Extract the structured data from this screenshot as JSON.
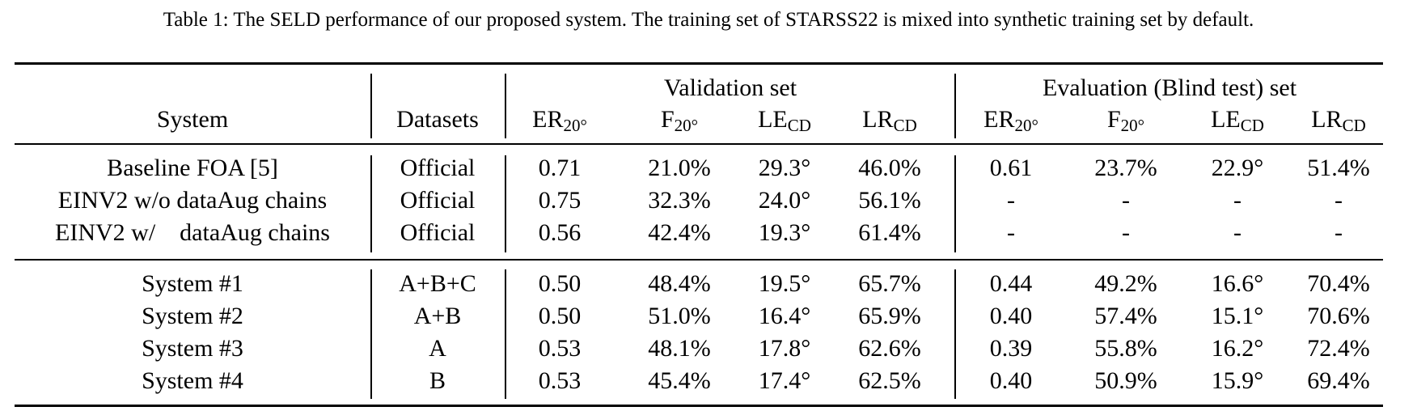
{
  "caption": "Table 1: The SELD performance of our proposed system. The training set of STARSS22 is mixed into synthetic training set by default.",
  "header": {
    "system": "System",
    "datasets": "Datasets",
    "validation_group": "Validation set",
    "evaluation_group": "Evaluation (Blind test) set",
    "metrics": [
      {
        "base": "ER",
        "sub": "20°"
      },
      {
        "base": "F",
        "sub": "20°"
      },
      {
        "base": "LE",
        "sub": "CD"
      },
      {
        "base": "LR",
        "sub": "CD"
      },
      {
        "base": "ER",
        "sub": "20°"
      },
      {
        "base": "F",
        "sub": "20°"
      },
      {
        "base": "LE",
        "sub": "CD"
      },
      {
        "base": "LR",
        "sub": "CD"
      }
    ]
  },
  "rows": [
    {
      "system": "Baseline FOA [5]",
      "datasets": "Official",
      "values": [
        "0.71",
        "21.0%",
        "29.3°",
        "46.0%",
        "0.61",
        "23.7%",
        "22.9°",
        "51.4%"
      ]
    },
    {
      "system": "EINV2 w/o dataAug chains",
      "datasets": "Official",
      "values": [
        "0.75",
        "32.3%",
        "24.0°",
        "56.1%",
        "-",
        "-",
        "-",
        "-"
      ]
    },
    {
      "system": "EINV2 w/    dataAug chains",
      "datasets": "Official",
      "values": [
        "0.56",
        "42.4%",
        "19.3°",
        "61.4%",
        "-",
        "-",
        "-",
        "-"
      ]
    },
    {
      "system": "System #1",
      "datasets": "A+B+C",
      "values": [
        "0.50",
        "48.4%",
        "19.5°",
        "65.7%",
        "0.44",
        "49.2%",
        "16.6°",
        "70.4%"
      ]
    },
    {
      "system": "System #2",
      "datasets": "A+B",
      "values": [
        "0.50",
        "51.0%",
        "16.4°",
        "65.9%",
        "0.40",
        "57.4%",
        "15.1°",
        "70.6%"
      ]
    },
    {
      "system": "System #3",
      "datasets": "A",
      "values": [
        "0.53",
        "48.1%",
        "17.8°",
        "62.6%",
        "0.39",
        "55.8%",
        "16.2°",
        "72.4%"
      ]
    },
    {
      "system": "System #4",
      "datasets": "B",
      "values": [
        "0.53",
        "45.4%",
        "17.4°",
        "62.5%",
        "0.40",
        "50.9%",
        "15.9°",
        "69.4%"
      ]
    }
  ]
}
